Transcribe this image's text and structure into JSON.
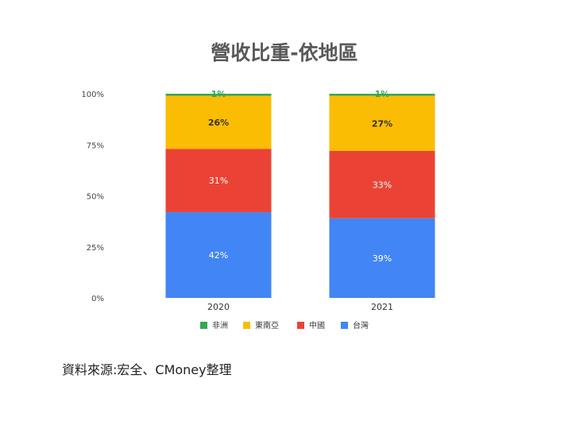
{
  "source_note": "資料來源:宏全、CMoney整理",
  "colors": {
    "africa": "#34a853",
    "southeast_asia": "#fbbc04",
    "china": "#ea4335",
    "taiwan": "#4285f4"
  },
  "chart_data": {
    "type": "bar",
    "stacked": true,
    "title": "營收比重-依地區",
    "categories": [
      "2020",
      "2021"
    ],
    "series": [
      {
        "name": "台灣",
        "values": [
          42,
          39
        ],
        "labels": [
          "42%",
          "39%"
        ],
        "color": "#4285f4"
      },
      {
        "name": "中國",
        "values": [
          31,
          33
        ],
        "labels": [
          "31%",
          "33%"
        ],
        "color": "#ea4335"
      },
      {
        "name": "東南亞",
        "values": [
          26,
          27
        ],
        "labels": [
          "26%",
          "27%"
        ],
        "color": "#fbbc04"
      },
      {
        "name": "非洲",
        "values": [
          1,
          1
        ],
        "labels": [
          "1%",
          "1%"
        ],
        "color": "#34a853"
      }
    ],
    "legend_order": [
      "非洲",
      "東南亞",
      "中國",
      "台灣"
    ],
    "yticks": [
      "0%",
      "25%",
      "50%",
      "75%",
      "100%"
    ],
    "ylim": [
      0,
      100
    ],
    "grid": false,
    "legend_position": "bottom"
  }
}
